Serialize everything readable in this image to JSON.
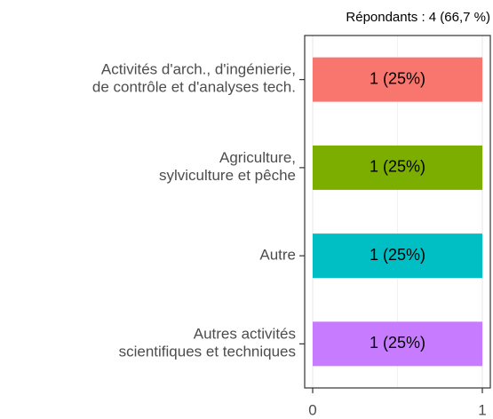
{
  "chart_data": {
    "type": "hbar",
    "subtitle": "Répondants : 4 (66,7 %)",
    "categories": [
      "Activités d'arch., d'ingénierie,\nde contrôle et d'analyses tech.",
      "Agriculture,\nsylviculture et pêche",
      "Autre",
      "Autres activités\nscientifiques et techniques"
    ],
    "values": [
      1,
      1,
      1,
      1
    ],
    "value_labels": [
      "1 (25%)",
      "1 (25%)",
      "1 (25%)",
      "1 (25%)"
    ],
    "colors": [
      "#F8766D",
      "#7CAE00",
      "#00BFC4",
      "#C77CFF"
    ],
    "xlim": [
      0,
      1
    ],
    "xticks": [
      0,
      1
    ],
    "grid": true
  }
}
